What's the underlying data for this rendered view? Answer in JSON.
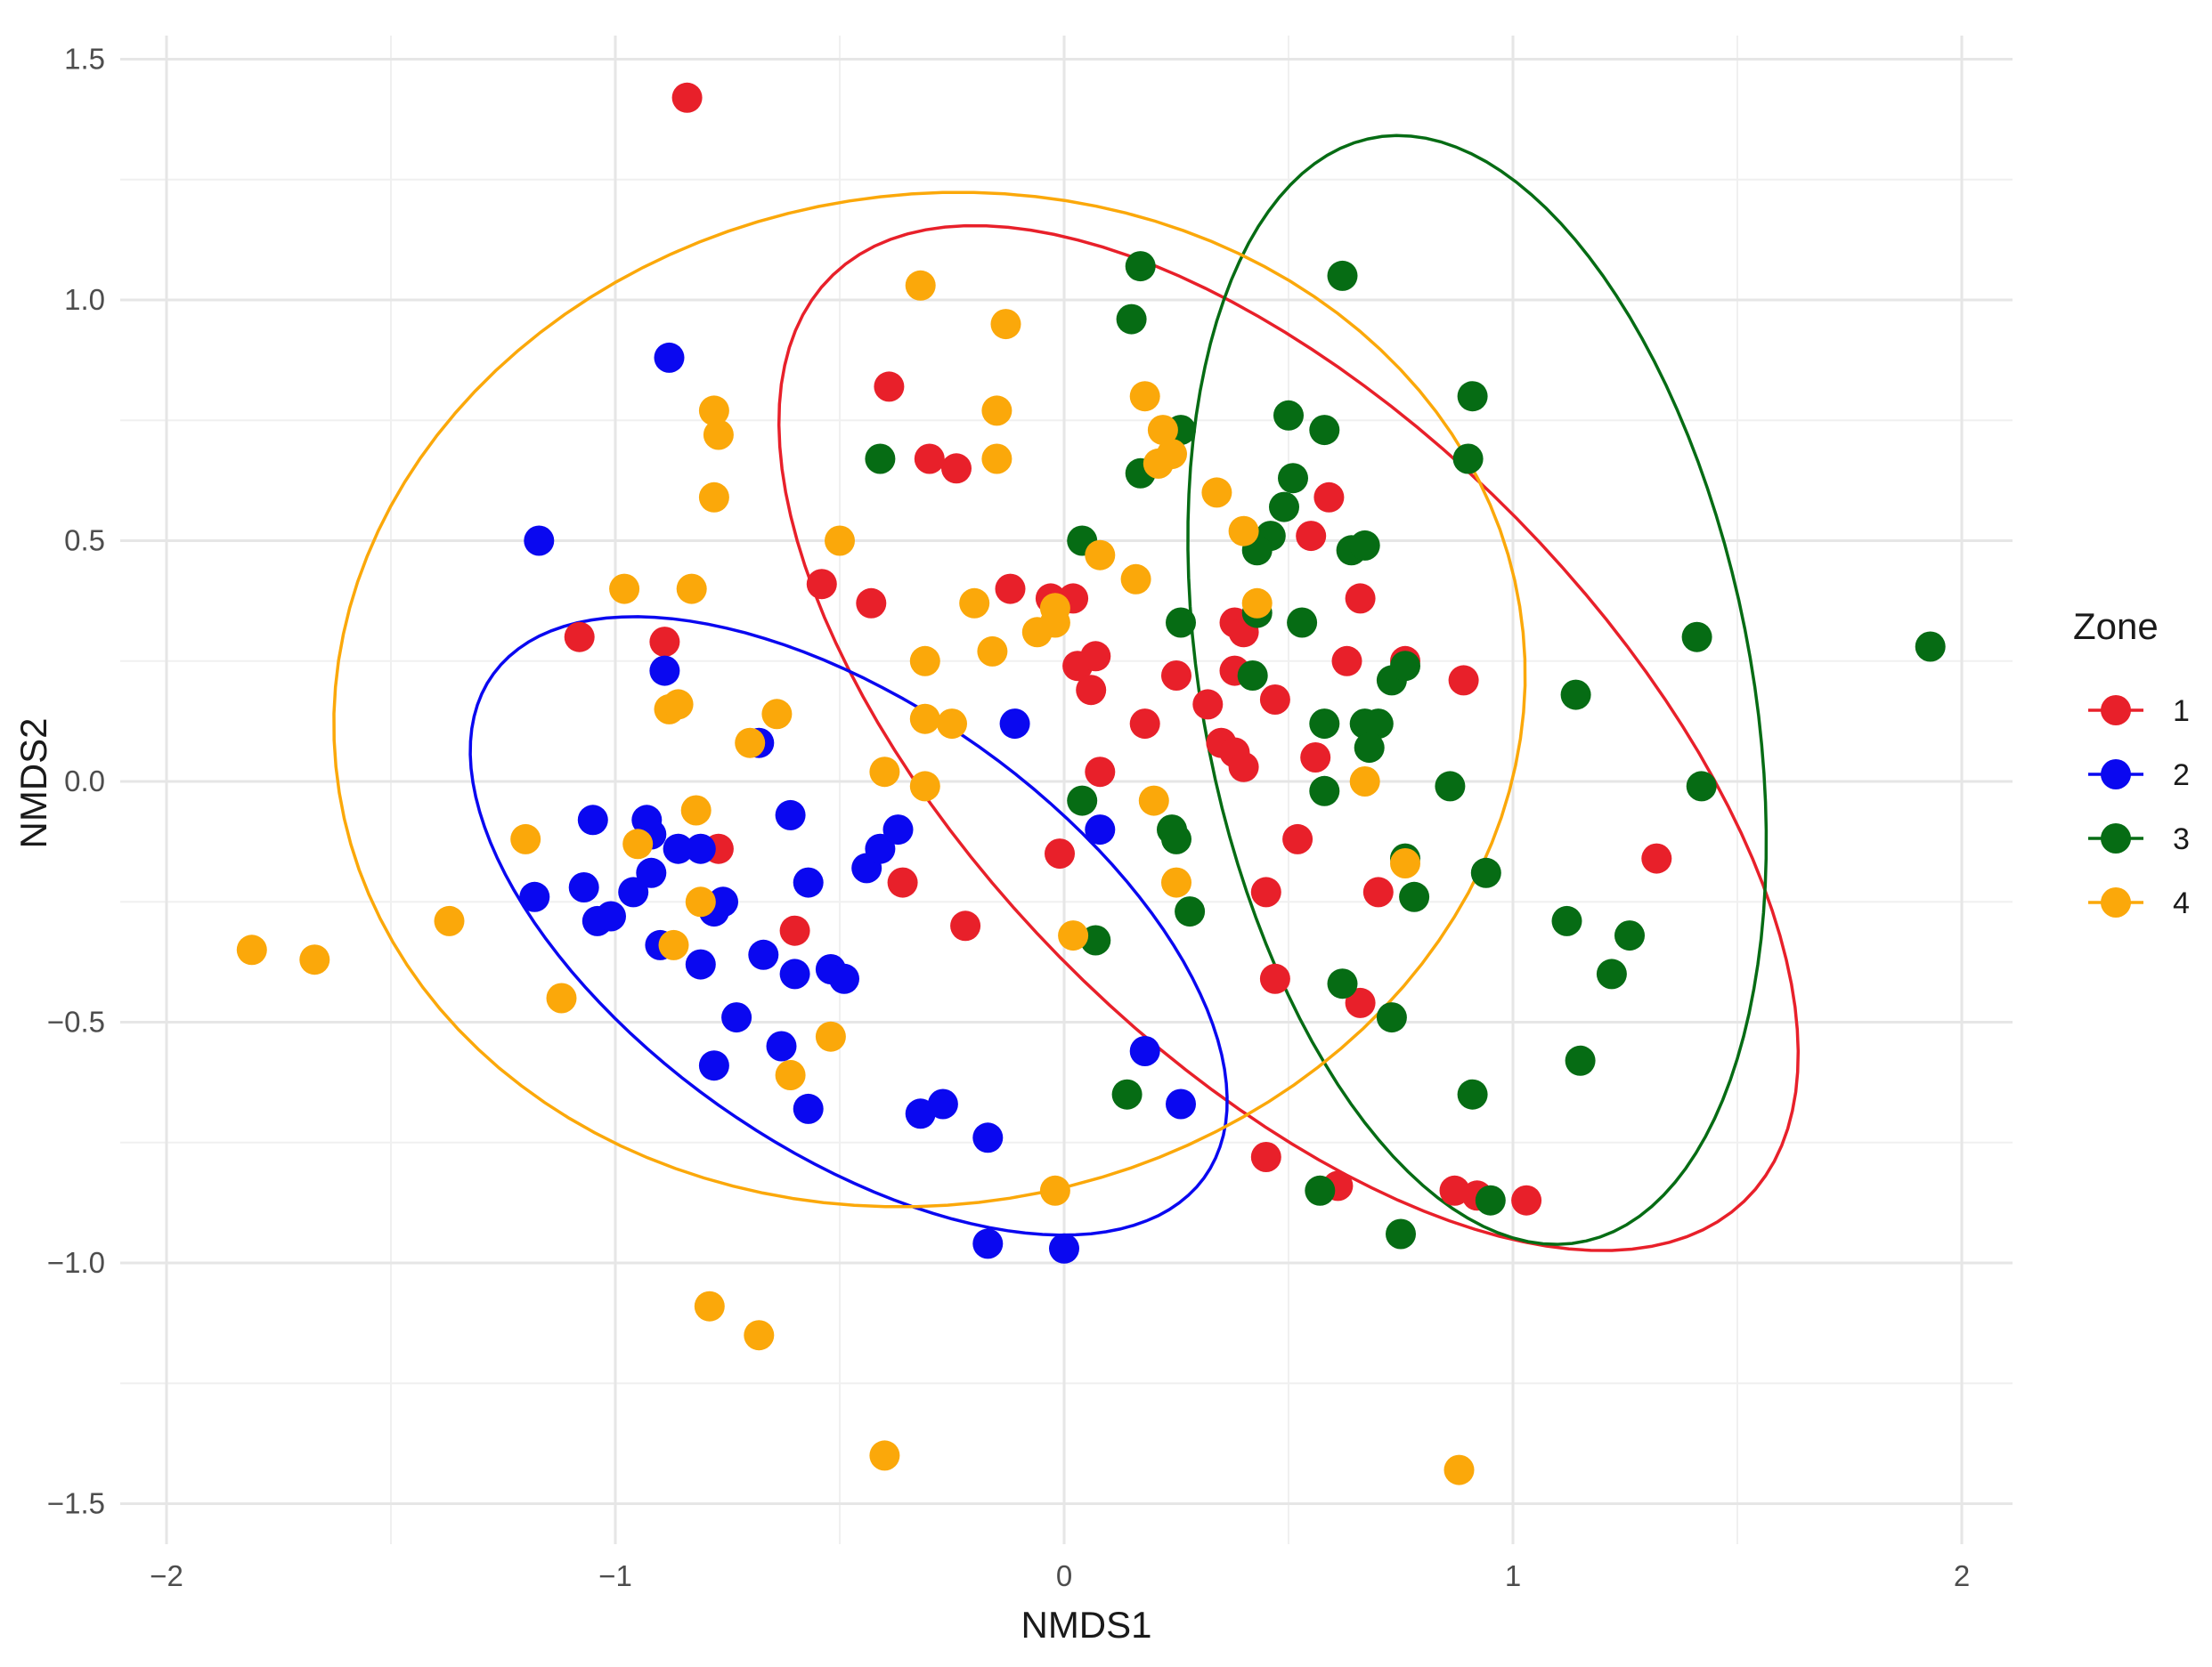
{
  "chart_data": {
    "type": "scatter",
    "title": "",
    "xlabel": "NMDS1",
    "ylabel": "NMDS2",
    "xlim": [
      -2.1,
      2.1
    ],
    "ylim": [
      -1.6,
      1.55
    ],
    "x_ticks": [
      -2,
      -1,
      0,
      1,
      2
    ],
    "x_tick_labels": [
      "−2",
      "−1",
      "0",
      "1",
      "2"
    ],
    "y_ticks": [
      -1.5,
      -1.0,
      -0.5,
      0.0,
      0.5,
      1.0,
      1.5
    ],
    "y_tick_labels": [
      "−1.5",
      "−1.0",
      "−0.5",
      "0.0",
      "0.5",
      "1.0",
      "1.5"
    ],
    "grid": true,
    "legend": {
      "title": "Zone",
      "position": "right"
    },
    "series": [
      {
        "name": "1",
        "color": "#e8202a",
        "ellipse": {
          "cx": 0.5,
          "cy": 0.09,
          "semi_major": 1.4,
          "semi_minor": 0.68,
          "angle_deg": -42
        },
        "points": [
          [
            -0.84,
            1.42
          ],
          [
            -1.08,
            0.3
          ],
          [
            -0.89,
            0.29
          ],
          [
            -0.77,
            -0.14
          ],
          [
            -0.6,
            -0.31
          ],
          [
            -0.54,
            0.41
          ],
          [
            -0.43,
            0.37
          ],
          [
            -0.39,
            0.82
          ],
          [
            -0.36,
            -0.21
          ],
          [
            -0.3,
            0.67
          ],
          [
            -0.24,
            0.65
          ],
          [
            -0.22,
            -0.3
          ],
          [
            -0.12,
            0.4
          ],
          [
            -0.03,
            0.38
          ],
          [
            -0.01,
            -0.15
          ],
          [
            0.02,
            0.38
          ],
          [
            0.03,
            0.24
          ],
          [
            0.07,
            0.26
          ],
          [
            0.06,
            0.19
          ],
          [
            0.08,
            0.02
          ],
          [
            0.18,
            0.12
          ],
          [
            0.25,
            0.22
          ],
          [
            0.32,
            0.16
          ],
          [
            0.35,
            0.08
          ],
          [
            0.38,
            0.06
          ],
          [
            0.4,
            0.03
          ],
          [
            0.38,
            0.33
          ],
          [
            0.4,
            0.31
          ],
          [
            0.38,
            0.23
          ],
          [
            0.47,
            0.17
          ],
          [
            0.52,
            -0.12
          ],
          [
            0.45,
            -0.23
          ],
          [
            0.47,
            -0.41
          ],
          [
            0.55,
            0.51
          ],
          [
            0.56,
            0.05
          ],
          [
            0.59,
            0.59
          ],
          [
            0.63,
            0.25
          ],
          [
            0.66,
            0.38
          ],
          [
            0.7,
            -0.23
          ],
          [
            0.66,
            -0.46
          ],
          [
            0.76,
            0.25
          ],
          [
            0.89,
            0.21
          ],
          [
            0.45,
            -0.78
          ],
          [
            0.61,
            -0.84
          ],
          [
            0.87,
            -0.85
          ],
          [
            0.92,
            -0.86
          ],
          [
            1.03,
            -0.87
          ],
          [
            1.32,
            -0.16
          ]
        ]
      },
      {
        "name": "2",
        "color": "#0a08f0",
        "ellipse": {
          "cx": -0.48,
          "cy": -0.3,
          "semi_major": 0.95,
          "semi_minor": 0.47,
          "angle_deg": -32
        },
        "points": [
          [
            -1.17,
            0.5
          ],
          [
            -0.88,
            0.88
          ],
          [
            -0.89,
            0.23
          ],
          [
            -0.68,
            0.08
          ],
          [
            -0.11,
            0.12
          ],
          [
            -1.18,
            -0.24
          ],
          [
            -1.05,
            -0.08
          ],
          [
            -1.04,
            -0.29
          ],
          [
            -1.01,
            -0.28
          ],
          [
            -1.07,
            -0.22
          ],
          [
            -0.96,
            -0.23
          ],
          [
            -0.93,
            -0.08
          ],
          [
            -0.92,
            -0.11
          ],
          [
            -0.92,
            -0.19
          ],
          [
            -0.9,
            -0.34
          ],
          [
            -0.86,
            -0.14
          ],
          [
            -0.81,
            -0.14
          ],
          [
            -0.81,
            -0.38
          ],
          [
            -0.78,
            -0.27
          ],
          [
            -0.76,
            -0.25
          ],
          [
            -0.73,
            -0.49
          ],
          [
            -0.78,
            -0.59
          ],
          [
            -0.67,
            -0.36
          ],
          [
            -0.61,
            -0.07
          ],
          [
            -0.63,
            -0.55
          ],
          [
            -0.6,
            -0.4
          ],
          [
            -0.57,
            -0.21
          ],
          [
            -0.57,
            -0.68
          ],
          [
            -0.52,
            -0.39
          ],
          [
            -0.49,
            -0.41
          ],
          [
            -0.44,
            -0.18
          ],
          [
            -0.41,
            -0.14
          ],
          [
            -0.37,
            -0.1
          ],
          [
            -0.32,
            -0.69
          ],
          [
            -0.27,
            -0.67
          ],
          [
            -0.17,
            -0.74
          ],
          [
            0.08,
            -0.1
          ],
          [
            0.18,
            -0.56
          ],
          [
            0.26,
            -0.67
          ],
          [
            -0.17,
            -0.96
          ],
          [
            0.0,
            -0.97
          ]
        ]
      },
      {
        "name": "3",
        "color": "#066c14",
        "ellipse": {
          "cx": 0.92,
          "cy": 0.19,
          "semi_major": 1.17,
          "semi_minor": 0.61,
          "angle_deg": -78
        },
        "points": [
          [
            0.17,
            1.07
          ],
          [
            0.15,
            0.96
          ],
          [
            -0.41,
            0.67
          ],
          [
            0.17,
            0.64
          ],
          [
            0.26,
            0.73
          ],
          [
            0.04,
            0.5
          ],
          [
            0.26,
            0.33
          ],
          [
            0.46,
            0.51
          ],
          [
            0.43,
            0.48
          ],
          [
            0.49,
            0.57
          ],
          [
            0.51,
            0.63
          ],
          [
            0.5,
            0.76
          ],
          [
            0.58,
            0.73
          ],
          [
            0.62,
            1.05
          ],
          [
            0.64,
            0.48
          ],
          [
            0.67,
            0.49
          ],
          [
            0.43,
            0.35
          ],
          [
            0.53,
            0.33
          ],
          [
            0.42,
            0.22
          ],
          [
            0.58,
            0.12
          ],
          [
            0.58,
            -0.02
          ],
          [
            0.67,
            0.12
          ],
          [
            0.7,
            0.12
          ],
          [
            0.68,
            0.07
          ],
          [
            0.73,
            0.21
          ],
          [
            0.76,
            0.24
          ],
          [
            0.04,
            -0.04
          ],
          [
            0.07,
            -0.33
          ],
          [
            0.24,
            -0.1
          ],
          [
            0.25,
            -0.12
          ],
          [
            0.28,
            -0.27
          ],
          [
            0.76,
            -0.16
          ],
          [
            0.78,
            -0.24
          ],
          [
            0.86,
            -0.01
          ],
          [
            0.9,
            0.67
          ],
          [
            0.91,
            0.8
          ],
          [
            0.94,
            -0.19
          ],
          [
            0.62,
            -0.42
          ],
          [
            0.73,
            -0.49
          ],
          [
            0.91,
            -0.65
          ],
          [
            0.14,
            -0.65
          ],
          [
            0.57,
            -0.85
          ],
          [
            0.75,
            -0.94
          ],
          [
            0.95,
            -0.87
          ],
          [
            1.12,
            -0.29
          ],
          [
            1.14,
            0.18
          ],
          [
            1.15,
            -0.58
          ],
          [
            1.22,
            -0.4
          ],
          [
            1.26,
            -0.32
          ],
          [
            1.41,
            0.3
          ],
          [
            1.42,
            -0.01
          ],
          [
            1.93,
            0.28
          ]
        ]
      },
      {
        "name": "4",
        "color": "#fba80a",
        "ellipse": {
          "cx": -0.3,
          "cy": 0.17,
          "semi_major": 1.33,
          "semi_minor": 1.05,
          "angle_deg": 6
        },
        "points": [
          [
            -0.32,
            1.03
          ],
          [
            -0.13,
            0.95
          ],
          [
            -0.78,
            0.77
          ],
          [
            -0.77,
            0.72
          ],
          [
            -0.78,
            0.59
          ],
          [
            -0.15,
            0.77
          ],
          [
            -0.15,
            0.67
          ],
          [
            0.18,
            0.8
          ],
          [
            0.22,
            0.73
          ],
          [
            0.24,
            0.68
          ],
          [
            0.21,
            0.66
          ],
          [
            -0.5,
            0.5
          ],
          [
            -0.98,
            0.4
          ],
          [
            -0.83,
            0.4
          ],
          [
            0.08,
            0.47
          ],
          [
            0.16,
            0.42
          ],
          [
            0.34,
            0.6
          ],
          [
            0.4,
            0.52
          ],
          [
            0.43,
            0.37
          ],
          [
            -0.2,
            0.37
          ],
          [
            -0.06,
            0.31
          ],
          [
            -0.02,
            0.33
          ],
          [
            -0.02,
            0.36
          ],
          [
            -0.16,
            0.27
          ],
          [
            -0.31,
            0.25
          ],
          [
            -0.31,
            0.13
          ],
          [
            -0.25,
            0.12
          ],
          [
            -0.88,
            0.15
          ],
          [
            -0.86,
            0.16
          ],
          [
            -0.64,
            0.14
          ],
          [
            -0.7,
            0.08
          ],
          [
            -0.4,
            0.02
          ],
          [
            -0.31,
            -0.01
          ],
          [
            -1.2,
            -0.12
          ],
          [
            -0.95,
            -0.13
          ],
          [
            -0.82,
            -0.06
          ],
          [
            -0.81,
            -0.25
          ],
          [
            -0.87,
            -0.34
          ],
          [
            -1.37,
            -0.29
          ],
          [
            -1.12,
            -0.45
          ],
          [
            -0.52,
            -0.53
          ],
          [
            -0.61,
            -0.61
          ],
          [
            0.02,
            -0.32
          ],
          [
            0.2,
            -0.04
          ],
          [
            0.25,
            -0.21
          ],
          [
            0.67,
            0.0
          ],
          [
            0.76,
            -0.17
          ],
          [
            -0.02,
            -0.85
          ],
          [
            -1.81,
            -0.35
          ],
          [
            -1.67,
            -0.37
          ],
          [
            -0.79,
            -1.09
          ],
          [
            -0.68,
            -1.15
          ],
          [
            -0.4,
            -1.4
          ],
          [
            0.88,
            -1.43
          ]
        ]
      }
    ]
  }
}
